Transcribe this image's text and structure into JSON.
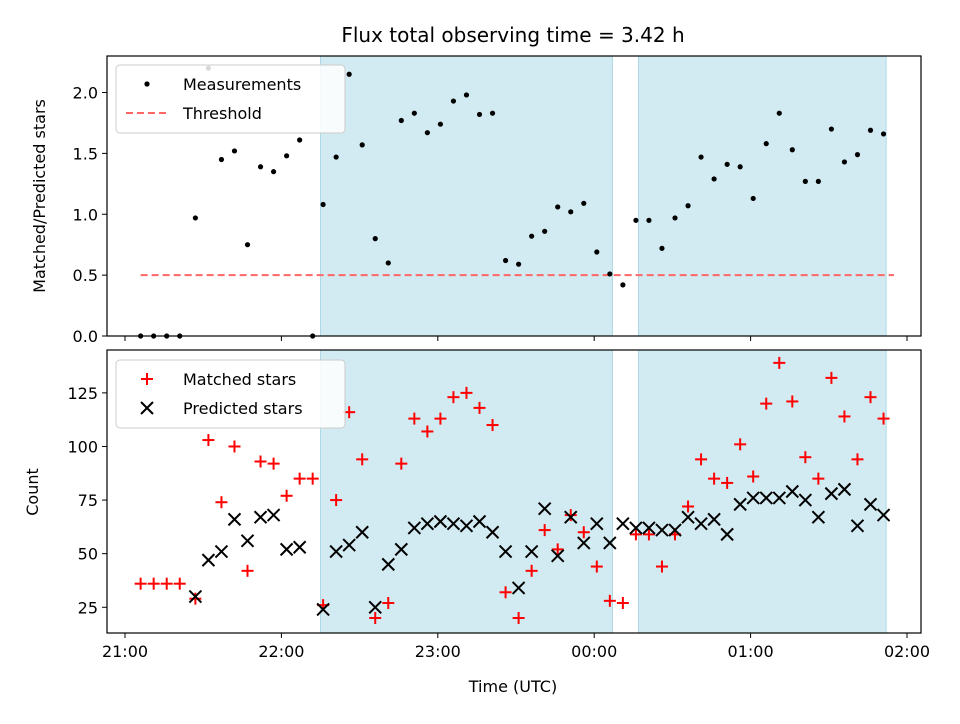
{
  "figure": {
    "title": "Flux total observing time = 3.42 h",
    "xlabel": "Time (UTC)"
  },
  "chart_data": [
    {
      "type": "scatter",
      "panel": "top",
      "ylabel": "Matched/Predicted stars",
      "xlim": [
        "21:00",
        "02:00"
      ],
      "ylim": [
        0,
        2.3
      ],
      "yticks": [
        "0.0",
        "0.5",
        "1.0",
        "1.5",
        "2.0"
      ],
      "shaded_intervals": [
        [
          "22:15",
          "00:07"
        ],
        [
          "00:17",
          "01:52"
        ]
      ],
      "shade_color": "#add8e6",
      "legend": {
        "placement": "upper-left",
        "entries": [
          "Measurements",
          "Threshold"
        ]
      },
      "threshold": {
        "name": "Threshold",
        "value": 0.5,
        "x_range": [
          "21:06",
          "01:55"
        ],
        "style": "dashed",
        "color": "#ff6666"
      },
      "series": [
        {
          "name": "Measurements",
          "marker": "dot",
          "color": "#000000",
          "points": [
            [
              "21:06",
              0.0
            ],
            [
              "21:11",
              0.0
            ],
            [
              "21:16",
              0.0
            ],
            [
              "21:21",
              0.0
            ],
            [
              "21:27",
              0.97
            ],
            [
              "21:32",
              2.2
            ],
            [
              "21:37",
              1.45
            ],
            [
              "21:42",
              1.52
            ],
            [
              "21:47",
              0.75
            ],
            [
              "21:52",
              1.39
            ],
            [
              "21:57",
              1.35
            ],
            [
              "22:02",
              1.48
            ],
            [
              "22:07",
              1.61
            ],
            [
              "22:12",
              0.0
            ],
            [
              "22:16",
              1.08
            ],
            [
              "22:21",
              1.47
            ],
            [
              "22:26",
              2.15
            ],
            [
              "22:31",
              1.57
            ],
            [
              "22:36",
              0.8
            ],
            [
              "22:41",
              0.6
            ],
            [
              "22:46",
              1.77
            ],
            [
              "22:51",
              1.83
            ],
            [
              "22:56",
              1.67
            ],
            [
              "23:01",
              1.74
            ],
            [
              "23:06",
              1.93
            ],
            [
              "23:11",
              1.98
            ],
            [
              "23:16",
              1.82
            ],
            [
              "23:21",
              1.83
            ],
            [
              "23:26",
              0.62
            ],
            [
              "23:31",
              0.59
            ],
            [
              "23:36",
              0.82
            ],
            [
              "23:41",
              0.86
            ],
            [
              "23:46",
              1.06
            ],
            [
              "23:51",
              1.02
            ],
            [
              "23:56",
              1.09
            ],
            [
              "00:01",
              0.69
            ],
            [
              "00:06",
              0.51
            ],
            [
              "00:11",
              0.42
            ],
            [
              "00:16",
              0.95
            ],
            [
              "00:21",
              0.95
            ],
            [
              "00:26",
              0.72
            ],
            [
              "00:31",
              0.97
            ],
            [
              "00:36",
              1.07
            ],
            [
              "00:41",
              1.47
            ],
            [
              "00:46",
              1.29
            ],
            [
              "00:51",
              1.41
            ],
            [
              "00:56",
              1.39
            ],
            [
              "01:01",
              1.13
            ],
            [
              "01:06",
              1.58
            ],
            [
              "01:11",
              1.83
            ],
            [
              "01:16",
              1.53
            ],
            [
              "01:21",
              1.27
            ],
            [
              "01:26",
              1.27
            ],
            [
              "01:31",
              1.7
            ],
            [
              "01:36",
              1.43
            ],
            [
              "01:41",
              1.49
            ],
            [
              "01:46",
              1.69
            ],
            [
              "01:51",
              1.66
            ]
          ]
        }
      ]
    },
    {
      "type": "scatter",
      "panel": "bottom",
      "ylabel": "Count",
      "xlabel": "Time (UTC)",
      "xlim": [
        "21:00",
        "02:00"
      ],
      "xticks": [
        "21:00",
        "22:00",
        "23:00",
        "00:00",
        "01:00",
        "02:00"
      ],
      "ylim": [
        13,
        145
      ],
      "yticks": [
        25,
        50,
        75,
        100,
        125
      ],
      "shaded_intervals": [
        [
          "22:15",
          "00:07"
        ],
        [
          "00:17",
          "01:52"
        ]
      ],
      "shade_color": "#add8e6",
      "legend": {
        "placement": "upper-left",
        "entries": [
          "Matched stars",
          "Predicted stars"
        ]
      },
      "series": [
        {
          "name": "Matched stars",
          "marker": "plus",
          "color": "#ff0000",
          "points": [
            [
              "21:06",
              36
            ],
            [
              "21:11",
              36
            ],
            [
              "21:16",
              36
            ],
            [
              "21:21",
              36
            ],
            [
              "21:27",
              29
            ],
            [
              "21:32",
              103
            ],
            [
              "21:37",
              74
            ],
            [
              "21:42",
              100
            ],
            [
              "21:47",
              42
            ],
            [
              "21:52",
              93
            ],
            [
              "21:57",
              92
            ],
            [
              "22:02",
              77
            ],
            [
              "22:07",
              85
            ],
            [
              "22:12",
              85
            ],
            [
              "22:16",
              26
            ],
            [
              "22:21",
              75
            ],
            [
              "22:26",
              116
            ],
            [
              "22:31",
              94
            ],
            [
              "22:36",
              20
            ],
            [
              "22:41",
              27
            ],
            [
              "22:46",
              92
            ],
            [
              "22:51",
              113
            ],
            [
              "22:56",
              107
            ],
            [
              "23:01",
              113
            ],
            [
              "23:06",
              123
            ],
            [
              "23:11",
              125
            ],
            [
              "23:16",
              118
            ],
            [
              "23:21",
              110
            ],
            [
              "23:26",
              32
            ],
            [
              "23:31",
              20
            ],
            [
              "23:36",
              42
            ],
            [
              "23:41",
              61
            ],
            [
              "23:46",
              52
            ],
            [
              "23:51",
              68
            ],
            [
              "23:56",
              60
            ],
            [
              "00:01",
              44
            ],
            [
              "00:06",
              28
            ],
            [
              "00:11",
              27
            ],
            [
              "00:16",
              59
            ],
            [
              "00:21",
              59
            ],
            [
              "00:26",
              44
            ],
            [
              "00:31",
              59
            ],
            [
              "00:36",
              72
            ],
            [
              "00:41",
              94
            ],
            [
              "00:46",
              85
            ],
            [
              "00:51",
              83
            ],
            [
              "00:56",
              101
            ],
            [
              "01:01",
              86
            ],
            [
              "01:06",
              120
            ],
            [
              "01:11",
              139
            ],
            [
              "01:16",
              121
            ],
            [
              "01:21",
              95
            ],
            [
              "01:26",
              85
            ],
            [
              "01:31",
              132
            ],
            [
              "01:36",
              114
            ],
            [
              "01:41",
              94
            ],
            [
              "01:46",
              123
            ],
            [
              "01:51",
              113
            ]
          ]
        },
        {
          "name": "Predicted stars",
          "marker": "x",
          "color": "#000000",
          "points": [
            [
              "21:27",
              30
            ],
            [
              "21:32",
              47
            ],
            [
              "21:37",
              51
            ],
            [
              "21:42",
              66
            ],
            [
              "21:47",
              56
            ],
            [
              "21:52",
              67
            ],
            [
              "21:57",
              68
            ],
            [
              "22:02",
              52
            ],
            [
              "22:07",
              53
            ],
            [
              "22:16",
              24
            ],
            [
              "22:21",
              51
            ],
            [
              "22:26",
              54
            ],
            [
              "22:31",
              60
            ],
            [
              "22:36",
              25
            ],
            [
              "22:41",
              45
            ],
            [
              "22:46",
              52
            ],
            [
              "22:51",
              62
            ],
            [
              "22:56",
              64
            ],
            [
              "23:01",
              65
            ],
            [
              "23:06",
              64
            ],
            [
              "23:11",
              63
            ],
            [
              "23:16",
              65
            ],
            [
              "23:21",
              60
            ],
            [
              "23:26",
              51
            ],
            [
              "23:31",
              34
            ],
            [
              "23:36",
              51
            ],
            [
              "23:41",
              71
            ],
            [
              "23:46",
              49
            ],
            [
              "23:51",
              67
            ],
            [
              "23:56",
              55
            ],
            [
              "00:01",
              64
            ],
            [
              "00:06",
              55
            ],
            [
              "00:11",
              64
            ],
            [
              "00:16",
              62
            ],
            [
              "00:21",
              62
            ],
            [
              "00:26",
              61
            ],
            [
              "00:31",
              61
            ],
            [
              "00:36",
              67
            ],
            [
              "00:41",
              64
            ],
            [
              "00:46",
              66
            ],
            [
              "00:51",
              59
            ],
            [
              "00:56",
              73
            ],
            [
              "01:01",
              76
            ],
            [
              "01:06",
              76
            ],
            [
              "01:11",
              76
            ],
            [
              "01:16",
              79
            ],
            [
              "01:21",
              75
            ],
            [
              "01:26",
              67
            ],
            [
              "01:31",
              78
            ],
            [
              "01:36",
              80
            ],
            [
              "01:41",
              63
            ],
            [
              "01:46",
              73
            ],
            [
              "01:51",
              68
            ]
          ]
        }
      ]
    }
  ]
}
